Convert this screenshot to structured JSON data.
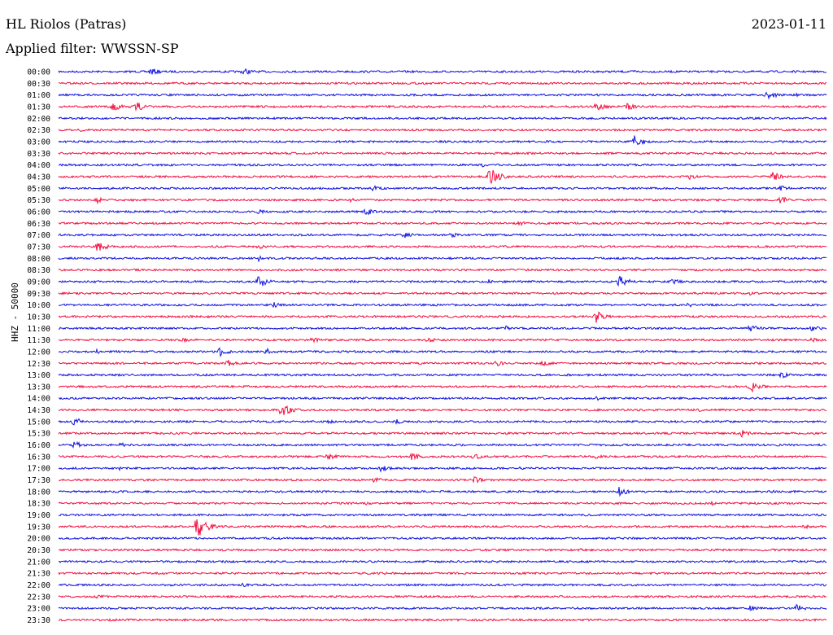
{
  "header": {
    "station": "HL Riolos (Patras)",
    "date": "2023-01-11",
    "filter": "Applied filter: WWSSN-SP",
    "channel": "HHZ - 50000"
  },
  "colors": {
    "odd": "#1010e0",
    "even": "#f01040"
  },
  "chart_data": {
    "type": "line",
    "title": "HL Riolos (Patras)",
    "subtitle": "Applied filter: WWSSN-SP",
    "ylabel": "HHZ - 50000",
    "xlabel": "",
    "rows": [
      {
        "label": "00:00",
        "events": [
          [
            0.12,
            5
          ],
          [
            0.24,
            5
          ],
          [
            0.75,
            2
          ]
        ]
      },
      {
        "label": "00:30",
        "events": []
      },
      {
        "label": "01:00",
        "events": [
          [
            0.92,
            8
          ],
          [
            0.96,
            2
          ]
        ]
      },
      {
        "label": "01:30",
        "events": [
          [
            0.07,
            6
          ],
          [
            0.1,
            7
          ],
          [
            0.7,
            7
          ],
          [
            0.74,
            5
          ]
        ]
      },
      {
        "label": "02:00",
        "events": []
      },
      {
        "label": "02:30",
        "events": [
          [
            0.03,
            3
          ],
          [
            0.83,
            2
          ]
        ]
      },
      {
        "label": "03:00",
        "events": [
          [
            0.75,
            8
          ]
        ]
      },
      {
        "label": "03:30",
        "events": []
      },
      {
        "label": "04:00",
        "events": [
          [
            0.55,
            3
          ]
        ]
      },
      {
        "label": "04:30",
        "events": [
          [
            0.56,
            14
          ],
          [
            0.82,
            4
          ],
          [
            0.93,
            6
          ]
        ]
      },
      {
        "label": "05:00",
        "events": [
          [
            0.41,
            4
          ],
          [
            0.94,
            4
          ]
        ]
      },
      {
        "label": "05:30",
        "events": [
          [
            0.05,
            4
          ],
          [
            0.38,
            3
          ],
          [
            0.94,
            5
          ]
        ]
      },
      {
        "label": "06:00",
        "events": [
          [
            0.4,
            5
          ],
          [
            0.26,
            3
          ]
        ]
      },
      {
        "label": "06:30",
        "events": [
          [
            0.6,
            3
          ]
        ]
      },
      {
        "label": "07:00",
        "events": [
          [
            0.45,
            4
          ],
          [
            0.51,
            4
          ]
        ]
      },
      {
        "label": "07:30",
        "events": [
          [
            0.05,
            7
          ],
          [
            0.26,
            3
          ]
        ]
      },
      {
        "label": "08:00",
        "events": [
          [
            0.26,
            4
          ]
        ]
      },
      {
        "label": "08:30",
        "events": []
      },
      {
        "label": "09:00",
        "events": [
          [
            0.26,
            9
          ],
          [
            0.73,
            8
          ],
          [
            0.56,
            3
          ],
          [
            0.8,
            4
          ]
        ]
      },
      {
        "label": "09:30",
        "events": [
          [
            0.9,
            3
          ]
        ]
      },
      {
        "label": "10:00",
        "events": [
          [
            0.28,
            4
          ],
          [
            0.82,
            3
          ]
        ]
      },
      {
        "label": "10:30",
        "events": [
          [
            0.7,
            8
          ]
        ]
      },
      {
        "label": "11:00",
        "events": [
          [
            0.58,
            4
          ],
          [
            0.98,
            5
          ],
          [
            0.9,
            5
          ]
        ]
      },
      {
        "label": "11:30",
        "events": [
          [
            0.16,
            4
          ],
          [
            0.33,
            4
          ],
          [
            0.48,
            4
          ],
          [
            0.98,
            3
          ]
        ]
      },
      {
        "label": "12:00",
        "events": [
          [
            0.21,
            6
          ],
          [
            0.27,
            5
          ],
          [
            0.05,
            3
          ]
        ]
      },
      {
        "label": "12:30",
        "events": [
          [
            0.22,
            5
          ],
          [
            0.57,
            4
          ],
          [
            0.63,
            4
          ]
        ]
      },
      {
        "label": "13:00",
        "events": [
          [
            0.94,
            5
          ],
          [
            0.18,
            2
          ]
        ]
      },
      {
        "label": "13:30",
        "events": [
          [
            0.9,
            8
          ]
        ]
      },
      {
        "label": "14:00",
        "events": [
          [
            0.4,
            2
          ],
          [
            0.7,
            3
          ]
        ]
      },
      {
        "label": "14:30",
        "events": [
          [
            0.29,
            10
          ],
          [
            0.83,
            3
          ]
        ]
      },
      {
        "label": "15:00",
        "events": [
          [
            0.02,
            6
          ],
          [
            0.35,
            3
          ],
          [
            0.44,
            3
          ]
        ]
      },
      {
        "label": "15:30",
        "events": [
          [
            0.89,
            5
          ]
        ]
      },
      {
        "label": "16:00",
        "events": [
          [
            0.02,
            5
          ],
          [
            0.08,
            3
          ]
        ]
      },
      {
        "label": "16:30",
        "events": [
          [
            0.35,
            5
          ],
          [
            0.46,
            5
          ],
          [
            0.54,
            4
          ],
          [
            0.7,
            3
          ]
        ]
      },
      {
        "label": "17:00",
        "events": [
          [
            0.42,
            5
          ],
          [
            0.08,
            3
          ],
          [
            0.6,
            2
          ]
        ]
      },
      {
        "label": "17:30",
        "events": [
          [
            0.41,
            5
          ],
          [
            0.54,
            5
          ]
        ]
      },
      {
        "label": "18:00",
        "events": [
          [
            0.73,
            6
          ],
          [
            0.93,
            2
          ]
        ]
      },
      {
        "label": "18:30",
        "events": [
          [
            0.4,
            3
          ],
          [
            0.85,
            3
          ]
        ]
      },
      {
        "label": "19:00",
        "events": [
          [
            0.55,
            2
          ]
        ]
      },
      {
        "label": "19:30",
        "events": [
          [
            0.18,
            16
          ],
          [
            0.97,
            3
          ]
        ]
      },
      {
        "label": "20:00",
        "events": []
      },
      {
        "label": "20:30",
        "events": [
          [
            0.68,
            2
          ]
        ]
      },
      {
        "label": "21:00",
        "events": []
      },
      {
        "label": "21:30",
        "events": []
      },
      {
        "label": "22:00",
        "events": [
          [
            0.24,
            3
          ]
        ]
      },
      {
        "label": "22:30",
        "events": [
          [
            0.05,
            3
          ]
        ]
      },
      {
        "label": "23:00",
        "events": [
          [
            0.9,
            4
          ],
          [
            0.96,
            5
          ]
        ]
      },
      {
        "label": "23:30",
        "events": []
      }
    ]
  }
}
